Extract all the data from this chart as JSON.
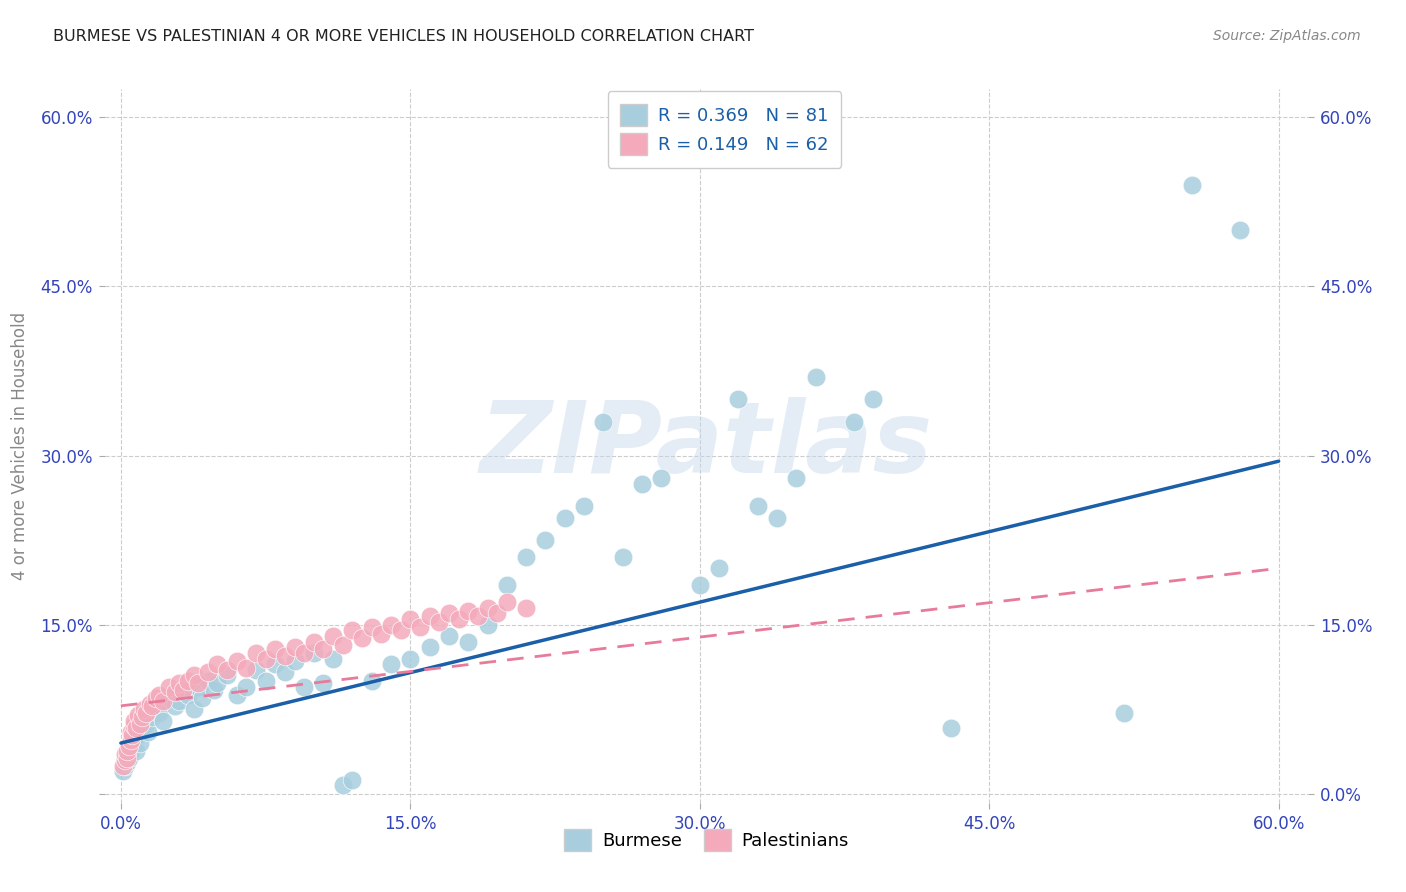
{
  "title": "BURMESE VS PALESTINIAN 4 OR MORE VEHICLES IN HOUSEHOLD CORRELATION CHART",
  "source": "Source: ZipAtlas.com",
  "ylabel": "4 or more Vehicles in Household",
  "burmese_color": "#A8CEDE",
  "palestinian_color": "#F4AABB",
  "burmese_line_color": "#1A5FA8",
  "palestinian_line_color": "#E87A9A",
  "burmese_R": 0.369,
  "burmese_N": 81,
  "palestinian_R": 0.149,
  "palestinian_N": 62,
  "watermark": "ZIPatlas",
  "tick_color": "#3344BB",
  "label_color": "#888888",
  "grid_color": "#CCCCCC",
  "xtick_vals": [
    0.0,
    0.15,
    0.3,
    0.45,
    0.6
  ],
  "xticklabels": [
    "0.0%",
    "15.0%",
    "30.0%",
    "45.0%",
    "60.0%"
  ],
  "ytick_vals": [
    0.0,
    0.15,
    0.3,
    0.45,
    0.6
  ],
  "yticklabels_left": [
    "",
    "15.0%",
    "30.0%",
    "45.0%",
    "60.0%"
  ],
  "yticklabels_right": [
    "0.0%",
    "15.0%",
    "30.0%",
    "45.0%",
    "60.0%"
  ],
  "burmese_x": [
    0.001,
    0.002,
    0.002,
    0.003,
    0.003,
    0.004,
    0.004,
    0.005,
    0.005,
    0.006,
    0.006,
    0.007,
    0.007,
    0.008,
    0.008,
    0.009,
    0.01,
    0.01,
    0.011,
    0.012,
    0.013,
    0.014,
    0.015,
    0.016,
    0.018,
    0.02,
    0.022,
    0.025,
    0.028,
    0.03,
    0.032,
    0.035,
    0.038,
    0.04,
    0.042,
    0.045,
    0.048,
    0.05,
    0.055,
    0.06,
    0.065,
    0.07,
    0.075,
    0.08,
    0.085,
    0.09,
    0.095,
    0.1,
    0.105,
    0.11,
    0.115,
    0.12,
    0.13,
    0.14,
    0.15,
    0.16,
    0.17,
    0.18,
    0.19,
    0.2,
    0.21,
    0.22,
    0.23,
    0.24,
    0.25,
    0.26,
    0.27,
    0.28,
    0.3,
    0.31,
    0.32,
    0.33,
    0.34,
    0.35,
    0.36,
    0.38,
    0.39,
    0.43,
    0.52,
    0.555,
    0.58
  ],
  "burmese_y": [
    0.02,
    0.025,
    0.03,
    0.035,
    0.028,
    0.04,
    0.032,
    0.045,
    0.038,
    0.05,
    0.042,
    0.055,
    0.048,
    0.06,
    0.038,
    0.052,
    0.065,
    0.045,
    0.058,
    0.07,
    0.062,
    0.055,
    0.075,
    0.068,
    0.08,
    0.072,
    0.065,
    0.085,
    0.078,
    0.082,
    0.09,
    0.088,
    0.075,
    0.095,
    0.085,
    0.1,
    0.092,
    0.098,
    0.105,
    0.088,
    0.095,
    0.11,
    0.1,
    0.115,
    0.108,
    0.118,
    0.095,
    0.125,
    0.098,
    0.12,
    0.008,
    0.012,
    0.1,
    0.115,
    0.12,
    0.13,
    0.14,
    0.135,
    0.15,
    0.185,
    0.21,
    0.225,
    0.245,
    0.255,
    0.33,
    0.21,
    0.275,
    0.28,
    0.185,
    0.2,
    0.35,
    0.255,
    0.245,
    0.28,
    0.37,
    0.33,
    0.35,
    0.058,
    0.072,
    0.54,
    0.5
  ],
  "palestinian_x": [
    0.001,
    0.002,
    0.002,
    0.003,
    0.003,
    0.004,
    0.005,
    0.005,
    0.006,
    0.007,
    0.007,
    0.008,
    0.009,
    0.01,
    0.011,
    0.012,
    0.013,
    0.015,
    0.016,
    0.018,
    0.02,
    0.022,
    0.025,
    0.028,
    0.03,
    0.032,
    0.035,
    0.038,
    0.04,
    0.045,
    0.05,
    0.055,
    0.06,
    0.065,
    0.07,
    0.075,
    0.08,
    0.085,
    0.09,
    0.095,
    0.1,
    0.105,
    0.11,
    0.115,
    0.12,
    0.125,
    0.13,
    0.135,
    0.14,
    0.145,
    0.15,
    0.155,
    0.16,
    0.165,
    0.17,
    0.175,
    0.18,
    0.185,
    0.19,
    0.195,
    0.2,
    0.21
  ],
  "palestinian_y": [
    0.025,
    0.03,
    0.035,
    0.032,
    0.038,
    0.042,
    0.048,
    0.055,
    0.052,
    0.06,
    0.065,
    0.058,
    0.07,
    0.062,
    0.068,
    0.075,
    0.072,
    0.08,
    0.078,
    0.085,
    0.088,
    0.082,
    0.095,
    0.09,
    0.098,
    0.092,
    0.1,
    0.105,
    0.098,
    0.108,
    0.115,
    0.11,
    0.118,
    0.112,
    0.125,
    0.12,
    0.128,
    0.122,
    0.13,
    0.125,
    0.135,
    0.128,
    0.14,
    0.132,
    0.145,
    0.138,
    0.148,
    0.142,
    0.15,
    0.145,
    0.155,
    0.148,
    0.158,
    0.152,
    0.16,
    0.155,
    0.162,
    0.158,
    0.165,
    0.16,
    0.17,
    0.165
  ],
  "burmese_line_x": [
    0.0,
    0.6
  ],
  "burmese_line_y": [
    0.045,
    0.295
  ],
  "palestinian_line_x": [
    0.0,
    0.6
  ],
  "palestinian_line_y": [
    0.078,
    0.2
  ]
}
